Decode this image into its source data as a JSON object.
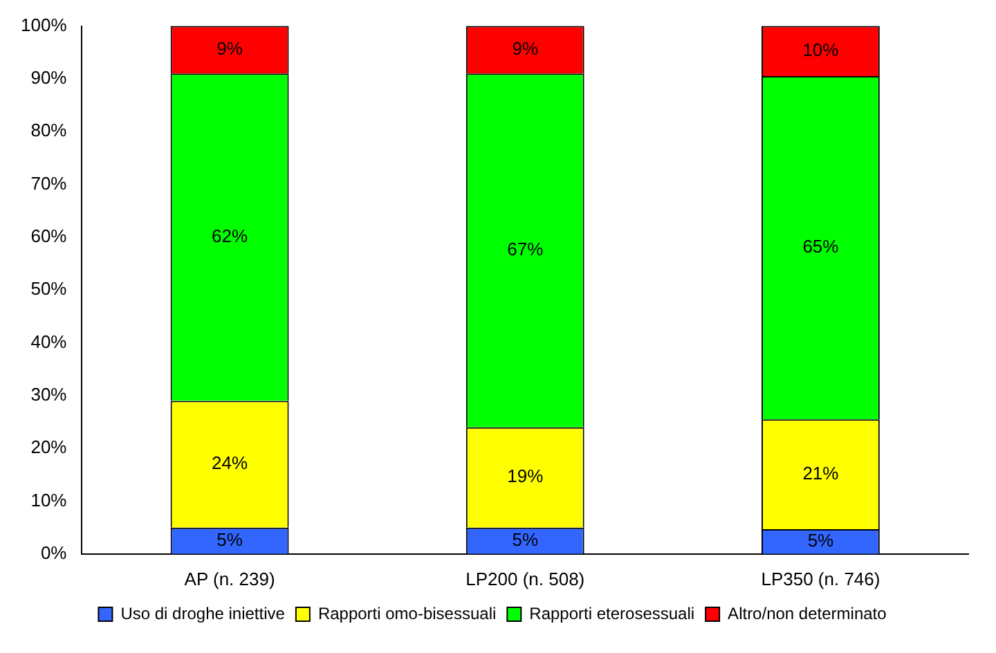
{
  "chart_data": {
    "type": "bar",
    "stacked": true,
    "categories": [
      "AP (n. 239)",
      "LP200 (n. 508)",
      "LP350 (n. 746)"
    ],
    "series": [
      {
        "name": "Uso di droghe iniettive",
        "color": "#3366ff",
        "values": [
          5,
          5,
          4.7
        ],
        "value_labels": [
          "5%",
          "5%",
          "5%"
        ]
      },
      {
        "name": "Rapporti omo-bisessuali",
        "color": "#ffff00",
        "values": [
          24,
          19,
          20.8
        ],
        "value_labels": [
          "24%",
          "19%",
          "21%"
        ]
      },
      {
        "name": "Rapporti eterosessuali",
        "color": "#00ff00",
        "values": [
          62,
          67,
          65
        ],
        "value_labels": [
          "62%",
          "67%",
          "65%"
        ]
      },
      {
        "name": "Altro/non determinato",
        "color": "#ff0000",
        "values": [
          9,
          9,
          9.5
        ],
        "value_labels": [
          "9%",
          "9%",
          "10%"
        ]
      }
    ],
    "ylim": [
      0,
      100
    ],
    "yticks": [
      {
        "value": 0,
        "label": "0%"
      },
      {
        "value": 10,
        "label": "10%"
      },
      {
        "value": 20,
        "label": "20%"
      },
      {
        "value": 30,
        "label": "30%"
      },
      {
        "value": 40,
        "label": "40%"
      },
      {
        "value": 50,
        "label": "50%"
      },
      {
        "value": 60,
        "label": "60%"
      },
      {
        "value": 70,
        "label": "70%"
      },
      {
        "value": 80,
        "label": "80%"
      },
      {
        "value": 90,
        "label": "90%"
      },
      {
        "value": 100,
        "label": "100%"
      }
    ],
    "grid": false,
    "legend": "bottom"
  }
}
